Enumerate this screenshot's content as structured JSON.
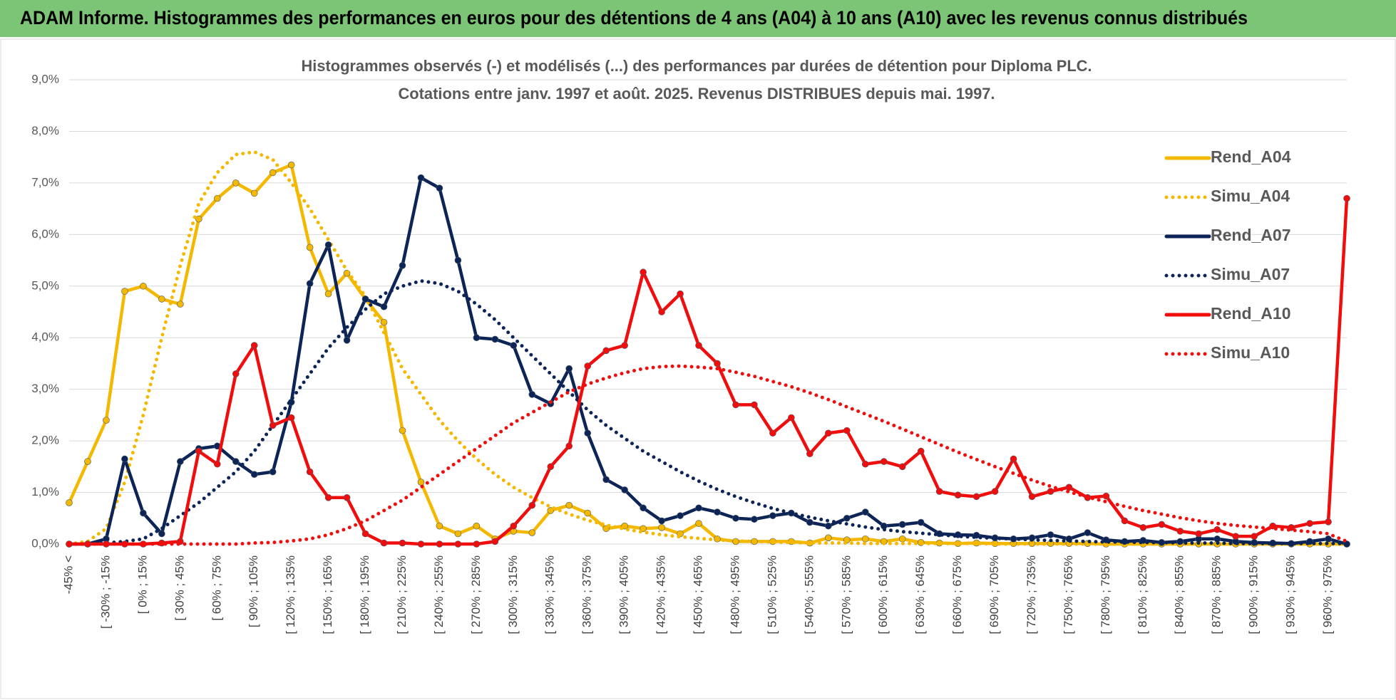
{
  "header": {
    "title": "ADAM Informe. Histogrammes des performances en euros pour des détentions de 4 ans (A04) à 10 ans (A10) avec les revenus connus distribués"
  },
  "chart_data": {
    "type": "line",
    "title": "Histogrammes observés (-) et modélisés (...) des performances par durées de détention pour Diploma PLC.",
    "subtitle": "Cotations entre janv. 1997 et août. 2025. Revenus DISTRIBUES depuis mai. 1997.",
    "categories": [
      "-45% <",
      null,
      "[ -30% ; -15%",
      null,
      "[ 0% ; 15%",
      null,
      "[ 30% ; 45%",
      null,
      "[ 60% ; 75%",
      null,
      "[ 90% ; 105%",
      null,
      "[ 120% ; 135%",
      null,
      "[ 150% ; 165%",
      null,
      "[ 180% ; 195%",
      null,
      "[ 210% ; 225%",
      null,
      "[ 240% ; 255%",
      null,
      "[ 270% ; 285%",
      null,
      "[ 300% ; 315%",
      null,
      "[ 330% ; 345%",
      null,
      "[ 360% ; 375%",
      null,
      "[ 390% ; 405%",
      null,
      "[ 420% ; 435%",
      null,
      "[ 450% ; 465%",
      null,
      "[ 480% ; 495%",
      null,
      "[ 510% ; 525%",
      null,
      "[ 540% ; 555%",
      null,
      "[ 570% ; 585%",
      null,
      "[ 600% ; 615%",
      null,
      "[ 630% ; 645%",
      null,
      "[ 660% ; 675%",
      null,
      "[ 690% ; 705%",
      null,
      "[ 720% ; 735%",
      null,
      "[ 750% ; 765%",
      null,
      "[ 780% ; 795%",
      null,
      "[ 810% ; 825%",
      null,
      "[ 840% ; 855%",
      null,
      "[ 870% ; 885%",
      null,
      "[ 900% ; 915%",
      null,
      "[ 930% ; 945%",
      null,
      "[ 960% ; 975%",
      null
    ],
    "series": [
      {
        "name": "Rend_A04",
        "color": "#f5b800",
        "line_style": "solid",
        "values": [
          0.8,
          1.6,
          2.4,
          4.9,
          5.0,
          4.75,
          4.65,
          6.3,
          6.7,
          7.0,
          6.8,
          7.2,
          7.35,
          5.75,
          4.85,
          5.25,
          4.75,
          4.3,
          2.2,
          1.2,
          0.35,
          0.2,
          0.35,
          0.1,
          0.25,
          0.22,
          0.65,
          0.75,
          0.6,
          0.3,
          0.35,
          0.3,
          0.32,
          0.2,
          0.4,
          0.1,
          0.05,
          0.05,
          0.05,
          0.05,
          0.02,
          0.12,
          0.08,
          0.1,
          0.05,
          0.1,
          0.03,
          0.02,
          0.01,
          0.02,
          0.01,
          0.01,
          0.01,
          0.01,
          0.01,
          0.01,
          0,
          0,
          0,
          0,
          0,
          0,
          0,
          0,
          0,
          0,
          0,
          0,
          0,
          0
        ]
      },
      {
        "name": "Simu_A04",
        "color": "#f5b800",
        "line_style": "dotted",
        "values": [
          0,
          0.05,
          0.3,
          1.2,
          2.5,
          4.0,
          5.4,
          6.6,
          7.2,
          7.55,
          7.6,
          7.45,
          7.0,
          6.5,
          5.9,
          5.3,
          4.8,
          4.1,
          3.4,
          2.9,
          2.4,
          2.0,
          1.65,
          1.35,
          1.1,
          0.9,
          0.72,
          0.58,
          0.46,
          0.37,
          0.29,
          0.23,
          0.18,
          0.14,
          0.11,
          0.08,
          0.06,
          0.05,
          0.04,
          0.03,
          0.02,
          0.02,
          0.02,
          0.01,
          0.01,
          0.01,
          0.01,
          0.01,
          0.01,
          0.01,
          0,
          0,
          0,
          0,
          0,
          0,
          0,
          0,
          0,
          0,
          0,
          0,
          0,
          0,
          0,
          0,
          0,
          0,
          0,
          0
        ]
      },
      {
        "name": "Rend_A07",
        "color": "#0d2556",
        "line_style": "solid",
        "values": [
          0,
          0,
          0.1,
          1.65,
          0.6,
          0.2,
          1.6,
          1.85,
          1.9,
          1.6,
          1.35,
          1.4,
          2.75,
          5.05,
          5.8,
          3.95,
          4.75,
          4.6,
          5.4,
          7.1,
          6.9,
          5.5,
          4.0,
          3.97,
          3.85,
          2.9,
          2.72,
          3.4,
          2.15,
          1.25,
          1.05,
          0.7,
          0.45,
          0.55,
          0.7,
          0.62,
          0.5,
          0.48,
          0.55,
          0.6,
          0.42,
          0.35,
          0.5,
          0.62,
          0.35,
          0.38,
          0.42,
          0.2,
          0.18,
          0.17,
          0.12,
          0.1,
          0.12,
          0.18,
          0.1,
          0.22,
          0.08,
          0.05,
          0.07,
          0.03,
          0.05,
          0.1,
          0.1,
          0.05,
          0.03,
          0.02,
          0.01,
          0.05,
          0.1,
          0
        ]
      },
      {
        "name": "Simu_A07",
        "color": "#0d2556",
        "line_style": "dotted",
        "values": [
          0,
          0,
          0.02,
          0.05,
          0.1,
          0.3,
          0.55,
          0.8,
          1.1,
          1.4,
          1.8,
          2.3,
          2.8,
          3.3,
          3.8,
          4.2,
          4.55,
          4.85,
          5.0,
          5.1,
          5.05,
          4.9,
          4.65,
          4.35,
          4.0,
          3.65,
          3.3,
          2.95,
          2.6,
          2.3,
          2.05,
          1.8,
          1.6,
          1.4,
          1.22,
          1.06,
          0.92,
          0.8,
          0.69,
          0.6,
          0.52,
          0.45,
          0.39,
          0.33,
          0.28,
          0.24,
          0.21,
          0.18,
          0.15,
          0.13,
          0.11,
          0.1,
          0.08,
          0.07,
          0.06,
          0.05,
          0.04,
          0.04,
          0.03,
          0.03,
          0.02,
          0.02,
          0.02,
          0.01,
          0.01,
          0.01,
          0.01,
          0.01,
          0.01,
          0.01
        ]
      },
      {
        "name": "Rend_A10",
        "color": "#f20d0d",
        "line_style": "solid",
        "values": [
          0,
          0,
          0,
          0,
          0,
          0.02,
          0.05,
          1.8,
          1.55,
          3.3,
          3.85,
          2.3,
          2.45,
          1.4,
          0.9,
          0.9,
          0.2,
          0.02,
          0.02,
          0,
          0,
          0,
          0,
          0.05,
          0.35,
          0.75,
          1.5,
          1.9,
          3.45,
          3.75,
          3.85,
          5.27,
          4.5,
          4.85,
          3.85,
          3.5,
          2.7,
          2.7,
          2.15,
          2.45,
          1.75,
          2.15,
          2.2,
          1.55,
          1.6,
          1.5,
          1.8,
          1.02,
          0.95,
          0.92,
          1.02,
          1.65,
          0.92,
          1.02,
          1.1,
          0.9,
          0.93,
          0.45,
          0.32,
          0.38,
          0.25,
          0.2,
          0.28,
          0.15,
          0.15,
          0.35,
          0.32,
          0.4,
          0.43,
          6.7
        ]
      },
      {
        "name": "Simu_A10",
        "color": "#f20d0d",
        "line_style": "dotted",
        "values": [
          0,
          0,
          0,
          0,
          0,
          0,
          0,
          0,
          0,
          0,
          0.02,
          0.03,
          0.06,
          0.1,
          0.18,
          0.3,
          0.45,
          0.65,
          0.85,
          1.1,
          1.35,
          1.6,
          1.85,
          2.1,
          2.35,
          2.55,
          2.75,
          2.95,
          3.1,
          3.22,
          3.32,
          3.4,
          3.44,
          3.45,
          3.43,
          3.4,
          3.33,
          3.25,
          3.15,
          3.05,
          2.93,
          2.8,
          2.66,
          2.52,
          2.38,
          2.23,
          2.08,
          1.93,
          1.78,
          1.64,
          1.5,
          1.37,
          1.24,
          1.12,
          1.01,
          0.91,
          0.82,
          0.73,
          0.65,
          0.58,
          0.51,
          0.45,
          0.4,
          0.36,
          0.33,
          0.3,
          0.27,
          0.24,
          0.2,
          0.05
        ]
      }
    ],
    "ylim": [
      0,
      9
    ],
    "yticks": [
      {
        "value": 0,
        "label": "0,0%"
      },
      {
        "value": 1,
        "label": "1,0%"
      },
      {
        "value": 2,
        "label": "2,0%"
      },
      {
        "value": 3,
        "label": "3,0%"
      },
      {
        "value": 4,
        "label": "4,0%"
      },
      {
        "value": 5,
        "label": "5,0%"
      },
      {
        "value": 6,
        "label": "6,0%"
      },
      {
        "value": 7,
        "label": "7,0%"
      },
      {
        "value": 8,
        "label": "8,0%"
      },
      {
        "value": 9,
        "label": "9,0%"
      }
    ],
    "grid": true,
    "legend": "right"
  }
}
